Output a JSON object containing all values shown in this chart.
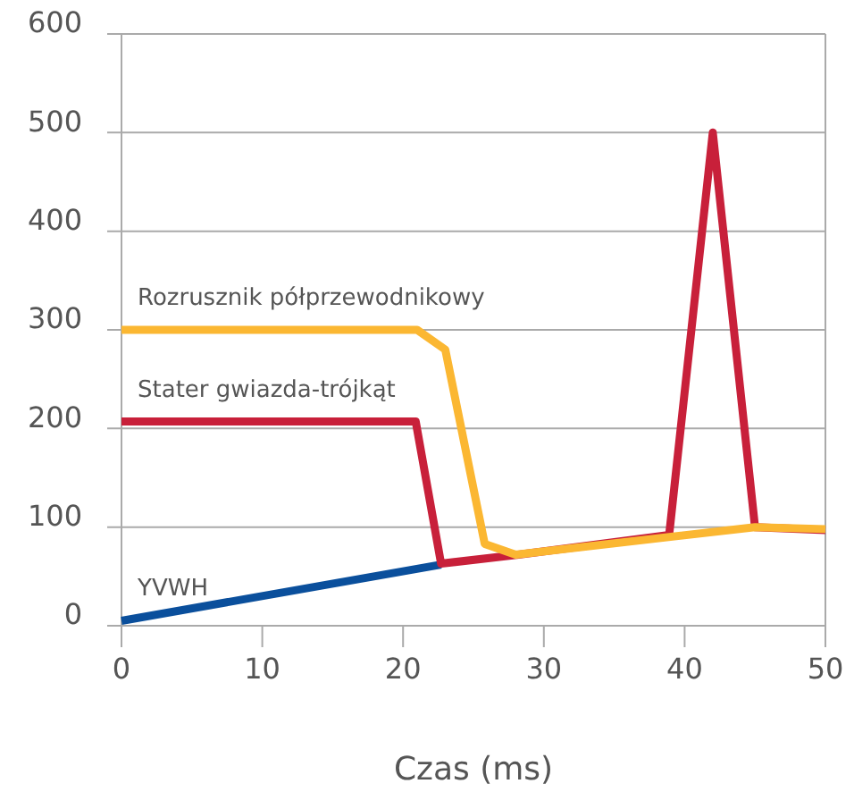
{
  "chart_data": {
    "type": "line",
    "xlabel": "Czas (ms)",
    "xlim": [
      0,
      50
    ],
    "xticks": [
      0,
      10,
      20,
      30,
      40,
      50
    ],
    "ylim": [
      0,
      600
    ],
    "yticks": [
      0,
      100,
      200,
      300,
      400,
      500,
      600
    ],
    "grid": "y",
    "line_style": "solid",
    "marker": "none",
    "series": [
      {
        "name": "YVWH",
        "color": "#0a4f9c",
        "x": [
          0,
          22.7
        ],
        "values": [
          5,
          62
        ]
      },
      {
        "name": "Stater gwiazda-trójkąt",
        "color": "#c8203a",
        "x": [
          0,
          20.9,
          22.7,
          28.2,
          38.9,
          42,
          45,
          50
        ],
        "values": [
          207,
          207,
          63,
          72,
          92,
          500,
          100,
          97
        ]
      },
      {
        "name": "Rozrusznik półprzewodnikowy",
        "color": "#fbb732",
        "x": [
          0,
          21,
          23,
          25.8,
          28,
          45,
          50
        ],
        "values": [
          300,
          300,
          280,
          83,
          72,
          100,
          98
        ]
      }
    ]
  }
}
